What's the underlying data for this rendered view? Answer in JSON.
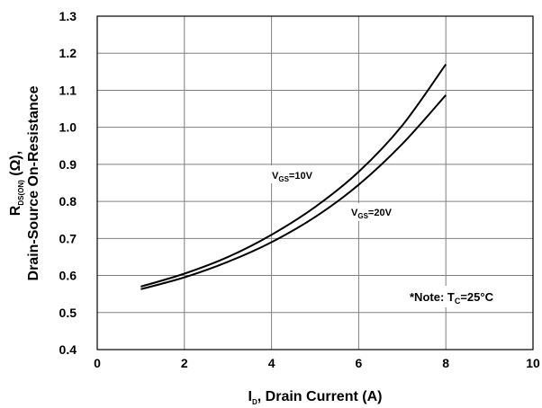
{
  "chart_data": {
    "type": "line",
    "x_axis": {
      "label_main": "I",
      "label_sub": "D",
      "label_rest": ", Drain Current (A)",
      "range": [
        0,
        10
      ],
      "ticks": [
        "0",
        "2",
        "4",
        "6",
        "8",
        "10"
      ]
    },
    "y_axis": {
      "label_line1_main": "R",
      "label_line1_sub": "DS(ON)",
      "label_line1_rest": " (Ω),",
      "label_line2": "Drain-Source On-Resistance",
      "range": [
        0.4,
        1.3
      ],
      "ticks": [
        "0.4",
        "0.5",
        "0.6",
        "0.7",
        "0.8",
        "0.9",
        "1.0",
        "1.1",
        "1.2",
        "1.3"
      ]
    },
    "grid": true,
    "series": [
      {
        "name_main": "V",
        "name_sub": "GS",
        "name_rest": "=10V",
        "x": [
          1,
          2,
          3,
          4,
          5,
          6,
          7,
          8
        ],
        "y": [
          0.57,
          0.605,
          0.65,
          0.71,
          0.785,
          0.88,
          1.005,
          1.17
        ]
      },
      {
        "name_main": "V",
        "name_sub": "GS",
        "name_rest": "=20V",
        "x": [
          1,
          2,
          3,
          4,
          5,
          6,
          7,
          8
        ],
        "y": [
          0.563,
          0.595,
          0.637,
          0.69,
          0.758,
          0.845,
          0.955,
          1.087
        ]
      }
    ],
    "note": {
      "prefix": "*Note: T",
      "sub": "C",
      "suffix": "=25°C"
    }
  }
}
